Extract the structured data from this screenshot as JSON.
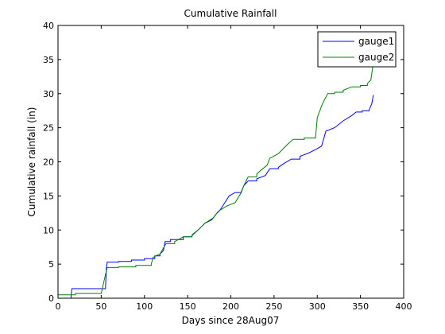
{
  "chart_data": {
    "type": "line",
    "title": "Cumulative Rainfall",
    "xlabel": "Days since 28Aug07",
    "ylabel": "Cumulative rainfall (in)",
    "xlim": [
      0,
      400
    ],
    "ylim": [
      0,
      40
    ],
    "xticks": [
      0,
      50,
      100,
      150,
      200,
      250,
      300,
      350,
      400
    ],
    "yticks": [
      0,
      5,
      10,
      15,
      20,
      25,
      30,
      35,
      40
    ],
    "grid": false,
    "legend_position": "top-right",
    "series": [
      {
        "name": "gauge1",
        "color": "#0000ff",
        "points": [
          [
            0,
            0
          ],
          [
            15,
            0
          ],
          [
            16,
            1.4
          ],
          [
            55,
            1.5
          ],
          [
            56,
            4.5
          ],
          [
            57,
            5.3
          ],
          [
            70,
            5.4
          ],
          [
            85,
            5.6
          ],
          [
            100,
            5.8
          ],
          [
            110,
            5.8
          ],
          [
            112,
            6.2
          ],
          [
            118,
            6.5
          ],
          [
            122,
            7.0
          ],
          [
            124,
            8.3
          ],
          [
            130,
            8.6
          ],
          [
            140,
            8.6
          ],
          [
            145,
            9.0
          ],
          [
            155,
            9.2
          ],
          [
            162,
            10.0
          ],
          [
            170,
            11.0
          ],
          [
            178,
            11.5
          ],
          [
            182,
            12.2
          ],
          [
            188,
            13.0
          ],
          [
            193,
            14.0
          ],
          [
            198,
            15.0
          ],
          [
            205,
            15.5
          ],
          [
            212,
            15.6
          ],
          [
            215,
            16.5
          ],
          [
            220,
            17.2
          ],
          [
            230,
            17.5
          ],
          [
            240,
            18.0
          ],
          [
            245,
            19.0
          ],
          [
            255,
            19.2
          ],
          [
            262,
            19.8
          ],
          [
            270,
            20.4
          ],
          [
            280,
            20.8
          ],
          [
            290,
            21.3
          ],
          [
            298,
            21.8
          ],
          [
            305,
            22.3
          ],
          [
            310,
            24.5
          ],
          [
            320,
            25.0
          ],
          [
            330,
            26.0
          ],
          [
            340,
            26.8
          ],
          [
            345,
            27.3
          ],
          [
            352,
            27.5
          ],
          [
            360,
            27.6
          ],
          [
            363,
            28.5
          ],
          [
            365,
            29.8
          ]
        ]
      },
      {
        "name": "gauge2",
        "color": "#008000",
        "points": [
          [
            0,
            0.5
          ],
          [
            15,
            0.5
          ],
          [
            20,
            0.7
          ],
          [
            50,
            0.7
          ],
          [
            55,
            3.5
          ],
          [
            57,
            4.5
          ],
          [
            70,
            4.6
          ],
          [
            90,
            4.8
          ],
          [
            108,
            5.0
          ],
          [
            110,
            6.0
          ],
          [
            118,
            6.5
          ],
          [
            125,
            8.0
          ],
          [
            135,
            8.3
          ],
          [
            145,
            9.0
          ],
          [
            155,
            9.3
          ],
          [
            162,
            10.0
          ],
          [
            170,
            11.0
          ],
          [
            180,
            11.8
          ],
          [
            185,
            12.7
          ],
          [
            195,
            13.5
          ],
          [
            205,
            14.0
          ],
          [
            212,
            15.5
          ],
          [
            215,
            16.5
          ],
          [
            220,
            17.8
          ],
          [
            230,
            18.2
          ],
          [
            235,
            18.8
          ],
          [
            242,
            19.5
          ],
          [
            245,
            20.5
          ],
          [
            255,
            21.2
          ],
          [
            265,
            22.5
          ],
          [
            272,
            23.3
          ],
          [
            285,
            23.5
          ],
          [
            298,
            23.6
          ],
          [
            300,
            26.5
          ],
          [
            306,
            28.5
          ],
          [
            312,
            30.0
          ],
          [
            320,
            30.2
          ],
          [
            330,
            30.5
          ],
          [
            340,
            31.0
          ],
          [
            350,
            31.2
          ],
          [
            358,
            31.5
          ],
          [
            362,
            32.0
          ],
          [
            366,
            35.5
          ]
        ]
      }
    ]
  }
}
